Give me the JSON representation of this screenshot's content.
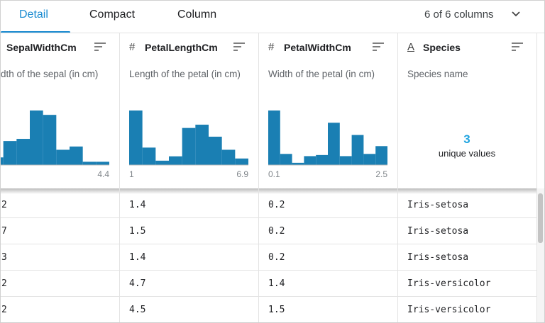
{
  "tabs": [
    "Detail",
    "Compact",
    "Column"
  ],
  "column_count": "6 of 6 columns",
  "columns": [
    {
      "name": "SepalWidthCm",
      "description": "dth of the sepal (in cm)",
      "histogram": {
        "counts": [
          7,
          22,
          24,
          50,
          46,
          14,
          17,
          3,
          3
        ],
        "max": "4.4"
      }
    },
    {
      "icon": "#",
      "name": "PetalLengthCm",
      "description": "Length of the petal (in cm)",
      "histogram": {
        "counts": [
          50,
          16,
          4,
          8,
          34,
          37,
          26,
          14,
          6
        ],
        "min": "1",
        "max": "6.9"
      }
    },
    {
      "icon": "#",
      "name": "PetalWidthCm",
      "description": "Width of the petal (in cm)",
      "histogram": {
        "counts": [
          49,
          10,
          2,
          8,
          9,
          38,
          8,
          27,
          10,
          17
        ],
        "min": "0.1",
        "max": "2.5"
      }
    },
    {
      "icon": "A",
      "name": "Species",
      "description": "Species name",
      "summary": {
        "value": "3",
        "label": "unique values"
      }
    }
  ],
  "rows": [
    [
      "2",
      "1.4",
      "0.2",
      "Iris-setosa"
    ],
    [
      "7",
      "1.5",
      "0.2",
      "Iris-setosa"
    ],
    [
      "3",
      "1.4",
      "0.2",
      "Iris-setosa"
    ],
    [
      "2",
      "4.7",
      "1.4",
      "Iris-versicolor"
    ],
    [
      "2",
      "4.5",
      "1.5",
      "Iris-versicolor"
    ]
  ]
}
